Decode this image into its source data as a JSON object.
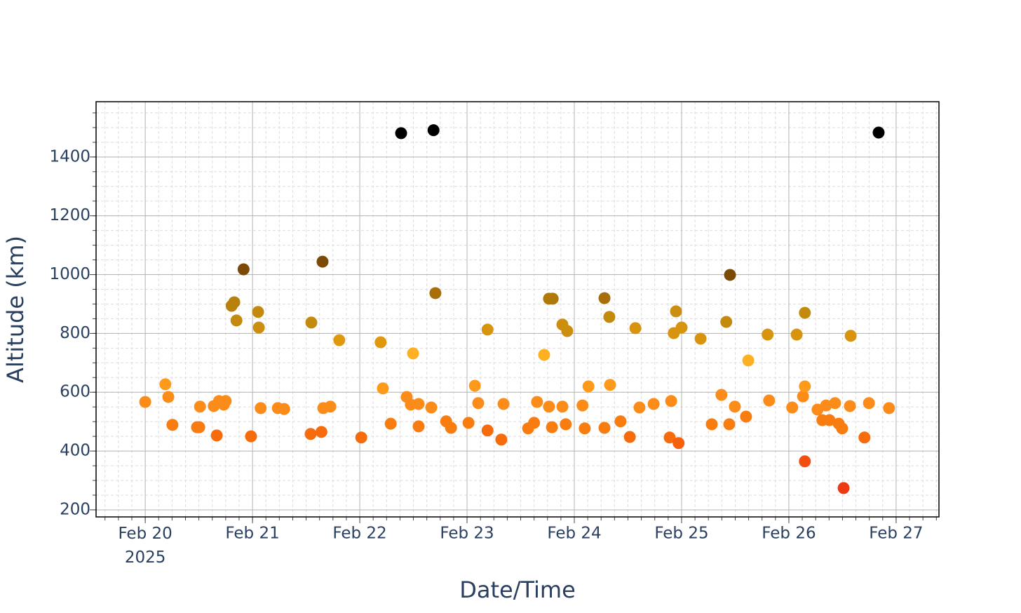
{
  "chart_data": {
    "type": "scatter",
    "x_label": "Date/Time",
    "y_label": "Altitude (km)",
    "x": [
      "2025-02-20T00:00",
      "2025-02-20T04:30",
      "2025-02-20T05:10",
      "2025-02-20T06:05",
      "2025-02-20T11:35",
      "2025-02-20T12:05",
      "2025-02-20T12:15",
      "2025-02-20T15:20",
      "2025-02-20T16:00",
      "2025-02-20T16:30",
      "2025-02-20T17:35",
      "2025-02-20T18:00",
      "2025-02-20T19:20",
      "2025-02-20T19:55",
      "2025-02-20T20:25",
      "2025-02-20T22:00",
      "2025-02-20T23:40",
      "2025-02-21T01:15",
      "2025-02-21T01:25",
      "2025-02-21T01:50",
      "2025-02-21T05:40",
      "2025-02-21T07:05",
      "2025-02-21T13:00",
      "2025-02-21T13:10",
      "2025-02-21T15:25",
      "2025-02-21T15:40",
      "2025-02-21T15:50",
      "2025-02-21T17:25",
      "2025-02-21T19:25",
      "2025-02-22T00:20",
      "2025-02-22T04:40",
      "2025-02-22T05:10",
      "2025-02-22T06:55",
      "2025-02-22T09:15",
      "2025-02-22T10:30",
      "2025-02-22T11:25",
      "2025-02-22T11:55",
      "2025-02-22T13:10",
      "2025-02-22T13:10",
      "2025-02-22T16:00",
      "2025-02-22T16:30",
      "2025-02-22T16:55",
      "2025-02-22T19:20",
      "2025-02-22T20:25",
      "2025-02-23T00:20",
      "2025-02-23T01:45",
      "2025-02-23T02:30",
      "2025-02-23T04:35",
      "2025-02-23T04:35",
      "2025-02-23T07:40",
      "2025-02-23T08:10",
      "2025-02-23T13:40",
      "2025-02-23T15:00",
      "2025-02-23T15:40",
      "2025-02-23T17:15",
      "2025-02-23T18:20",
      "2025-02-23T18:20",
      "2025-02-23T19:10",
      "2025-02-23T19:00",
      "2025-02-23T21:20",
      "2025-02-23T21:20",
      "2025-02-23T22:05",
      "2025-02-23T22:25",
      "2025-02-24T01:50",
      "2025-02-24T02:20",
      "2025-02-24T03:10",
      "2025-02-24T06:45",
      "2025-02-24T06:45",
      "2025-02-24T07:50",
      "2025-02-24T08:00",
      "2025-02-24T10:20",
      "2025-02-24T12:25",
      "2025-02-24T13:40",
      "2025-02-24T14:35",
      "2025-02-24T17:45",
      "2025-02-24T21:20",
      "2025-02-24T21:40",
      "2025-02-24T22:15",
      "2025-02-24T22:45",
      "2025-02-24T23:20",
      "2025-02-25T00:00",
      "2025-02-25T04:15",
      "2025-02-25T06:45",
      "2025-02-25T08:55",
      "2025-02-25T10:00",
      "2025-02-25T10:40",
      "2025-02-25T10:50",
      "2025-02-25T11:55",
      "2025-02-25T14:25",
      "2025-02-25T14:55",
      "2025-02-25T19:15",
      "2025-02-25T19:35",
      "2025-02-26T00:45",
      "2025-02-26T01:45",
      "2025-02-26T03:10",
      "2025-02-26T03:35",
      "2025-02-26T03:35",
      "2025-02-26T03:35",
      "2025-02-26T06:25",
      "2025-02-26T07:30",
      "2025-02-26T08:20",
      "2025-02-26T09:05",
      "2025-02-26T10:20",
      "2025-02-26T11:10",
      "2025-02-26T11:55",
      "2025-02-26T12:15",
      "2025-02-26T13:40",
      "2025-02-26T13:50",
      "2025-02-26T16:55",
      "2025-02-26T17:55",
      "2025-02-26T20:05",
      "2025-02-26T22:25"
    ],
    "values": [
      567,
      627,
      584,
      489,
      481,
      481,
      551,
      553,
      453,
      570,
      558,
      570,
      894,
      906,
      844,
      1018,
      450,
      873,
      820,
      546,
      546,
      543,
      458,
      837,
      465,
      1044,
      546,
      551,
      777,
      446,
      770,
      613,
      493,
      1481,
      584,
      558,
      732,
      560,
      484,
      548,
      1491,
      937,
      501,
      479,
      496,
      622,
      563,
      813,
      470,
      439,
      560,
      477,
      496,
      567,
      727,
      551,
      918,
      918,
      481,
      830,
      551,
      491,
      808,
      555,
      477,
      620,
      920,
      479,
      856,
      625,
      501,
      448,
      818,
      548,
      560,
      446,
      570,
      801,
      875,
      427,
      820,
      782,
      491,
      591,
      839,
      491,
      999,
      551,
      517,
      708,
      796,
      572,
      548,
      796,
      586,
      620,
      870,
      365,
      541,
      505,
      555,
      505,
      563,
      493,
      477,
      274,
      553,
      792,
      446,
      563,
      1483,
      546
    ],
    "colors": [
      "#fb8c1a",
      "#fd9a1a",
      "#fb8c1a",
      "#f87c10",
      "#f87c10",
      "#f87c10",
      "#fb8c1a",
      "#fb8c1a",
      "#f66b0c",
      "#fb8c1a",
      "#fb8c1a",
      "#fb8c1a",
      "#b8800c",
      "#b8800c",
      "#c48a0e",
      "#7a4a06",
      "#f66b0c",
      "#c48a0e",
      "#cc8e0e",
      "#fb8c1a",
      "#fb8c1a",
      "#fb8c1a",
      "#f66b0c",
      "#c48a0e",
      "#f66b0c",
      "#7a4a06",
      "#fb8c1a",
      "#fb8c1a",
      "#e0980f",
      "#f66b0c",
      "#e0980f",
      "#fd9a1a",
      "#f87c10",
      "#000000",
      "#fb8c1a",
      "#fb8c1a",
      "#fdb022",
      "#fb8c1a",
      "#f87c10",
      "#fb8c1a",
      "#000000",
      "#a86e0a",
      "#f87c10",
      "#f87c10",
      "#f87c10",
      "#fd9a1a",
      "#fb8c1a",
      "#d8940e",
      "#f66b0c",
      "#f66b0c",
      "#fb8c1a",
      "#f87c10",
      "#f87c10",
      "#fb8c1a",
      "#fdb022",
      "#fb8c1a",
      "#b07a0a",
      "#b07a0a",
      "#f87c10",
      "#cc8e0e",
      "#fb8c1a",
      "#f87c10",
      "#cc8e0e",
      "#fb8c1a",
      "#f87c10",
      "#fd9a1a",
      "#a86e0a",
      "#f87c10",
      "#c48a0e",
      "#fd9a1a",
      "#f87c10",
      "#f66b0c",
      "#d8940e",
      "#fb8c1a",
      "#fb8c1a",
      "#f66b0c",
      "#fb8c1a",
      "#d8940e",
      "#cc8e0e",
      "#f4600c",
      "#d8940e",
      "#d8940e",
      "#f87c10",
      "#fb8c1a",
      "#c48a0e",
      "#f87c10",
      "#7a4a06",
      "#fb8c1a",
      "#f87c10",
      "#fdb022",
      "#d8940e",
      "#fb8c1a",
      "#fb8c1a",
      "#d8940e",
      "#fb8c1a",
      "#fd9a1a",
      "#c48a0e",
      "#f24e10",
      "#fb8c1a",
      "#f87c10",
      "#fb8c1a",
      "#f87c10",
      "#fb8c1a",
      "#f87c10",
      "#f87c10",
      "#ee3a12",
      "#fb8c1a",
      "#d8940e",
      "#f66b0c",
      "#fb8c1a",
      "#000000",
      "#fb8c1a"
    ],
    "xlim": [
      "2025-02-19T13:00",
      "2025-02-27T09:35"
    ],
    "xticks": [
      {
        "value": "2025-02-20T00:00",
        "label": "Feb 20\n2025"
      },
      {
        "value": "2025-02-21T00:00",
        "label": "Feb 21"
      },
      {
        "value": "2025-02-22T00:00",
        "label": "Feb 22"
      },
      {
        "value": "2025-02-23T00:00",
        "label": "Feb 23"
      },
      {
        "value": "2025-02-24T00:00",
        "label": "Feb 24"
      },
      {
        "value": "2025-02-25T00:00",
        "label": "Feb 25"
      },
      {
        "value": "2025-02-26T00:00",
        "label": "Feb 26"
      },
      {
        "value": "2025-02-27T00:00",
        "label": "Feb 27"
      }
    ],
    "ylim": [
      176,
      1588
    ],
    "yticks": [
      200,
      400,
      600,
      800,
      1000,
      1200,
      1400
    ],
    "grid": true,
    "minor_grid": true
  }
}
